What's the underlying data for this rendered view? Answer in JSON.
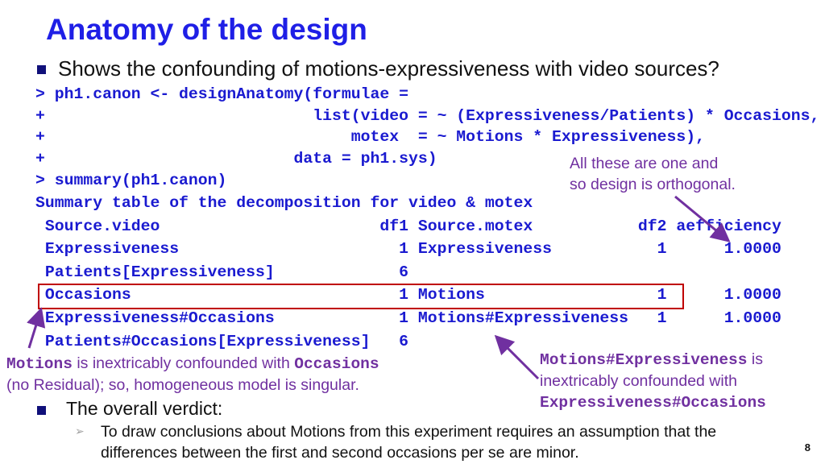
{
  "title": "Anatomy of the design",
  "bullet1": "Shows the confounding of motions-expressiveness with video sources?",
  "code_lines": [
    "> ph1.canon <- designAnatomy(formulae =",
    "+                            list(video = ~ (Expressiveness/Patients) * Occasions,",
    "+                                motex  = ~ Motions * Expressiveness),",
    "+                          data = ph1.sys)",
    "> summary(ph1.canon)",
    "Summary table of the decomposition for video & motex",
    " Source.video                       df1 Source.motex           df2 aefficiency",
    " Expressiveness                       1 Expressiveness           1      1.0000",
    " Patients[Expressiveness]             6",
    " Occasions                            1 Motions                  1      1.0000",
    " Expressiveness#Occasions             1 Motions#Expressiveness   1      1.0000",
    " Patients#Occasions[Expressiveness]   6"
  ],
  "note_orthogonal": [
    "All these are one and",
    "so design is orthogonal."
  ],
  "note_motions": {
    "term1": "Motions",
    "text1": " is inextricably confounded with ",
    "term2": "Occasions",
    "line2": "(no Residual); so, homogeneous model is singular."
  },
  "note_interaction": {
    "term1": "Motions#Expressiveness",
    "text1": " is",
    "line2": "inextricably confounded with",
    "term2": "Expressiveness#Occasions"
  },
  "verdict": "The overall verdict:",
  "verdict_sub": "To draw conclusions about Motions from this experiment requires an assumption that the differences between the first and second occasions per se are minor.",
  "page_number": "8",
  "colors": {
    "title": "#1f1fe6",
    "code": "#1a1ad0",
    "annotation": "#7030a0",
    "highlight_box": "#c00000"
  }
}
